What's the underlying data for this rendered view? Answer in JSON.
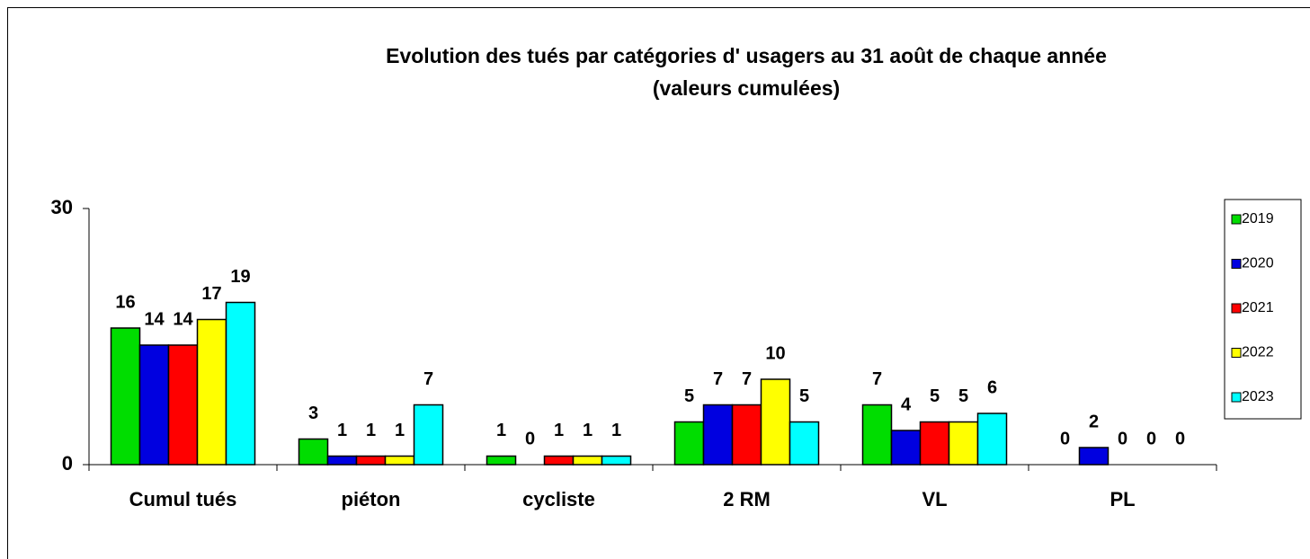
{
  "chart_data": {
    "type": "bar",
    "title": "Evolution des tués par catégories d' usagers au 31 août de chaque année",
    "subtitle": "(valeurs cumulées)",
    "categories": [
      "Cumul tués",
      "piéton",
      "cycliste",
      "2 RM",
      "VL",
      "PL"
    ],
    "series": [
      {
        "name": "2019",
        "color": "#00dd00",
        "values": [
          16,
          3,
          1,
          5,
          7,
          0
        ]
      },
      {
        "name": "2020",
        "color": "#0000e0",
        "values": [
          14,
          1,
          0,
          7,
          4,
          2
        ]
      },
      {
        "name": "2021",
        "color": "#ff0000",
        "values": [
          14,
          1,
          1,
          7,
          5,
          0
        ]
      },
      {
        "name": "2022",
        "color": "#ffff00",
        "values": [
          17,
          1,
          1,
          10,
          5,
          0
        ]
      },
      {
        "name": "2023",
        "color": "#00ffff",
        "values": [
          19,
          7,
          1,
          5,
          6,
          0
        ]
      }
    ],
    "ylim": [
      0,
      30
    ],
    "yticks": [
      0,
      30
    ],
    "grid": false,
    "legend": "right"
  }
}
